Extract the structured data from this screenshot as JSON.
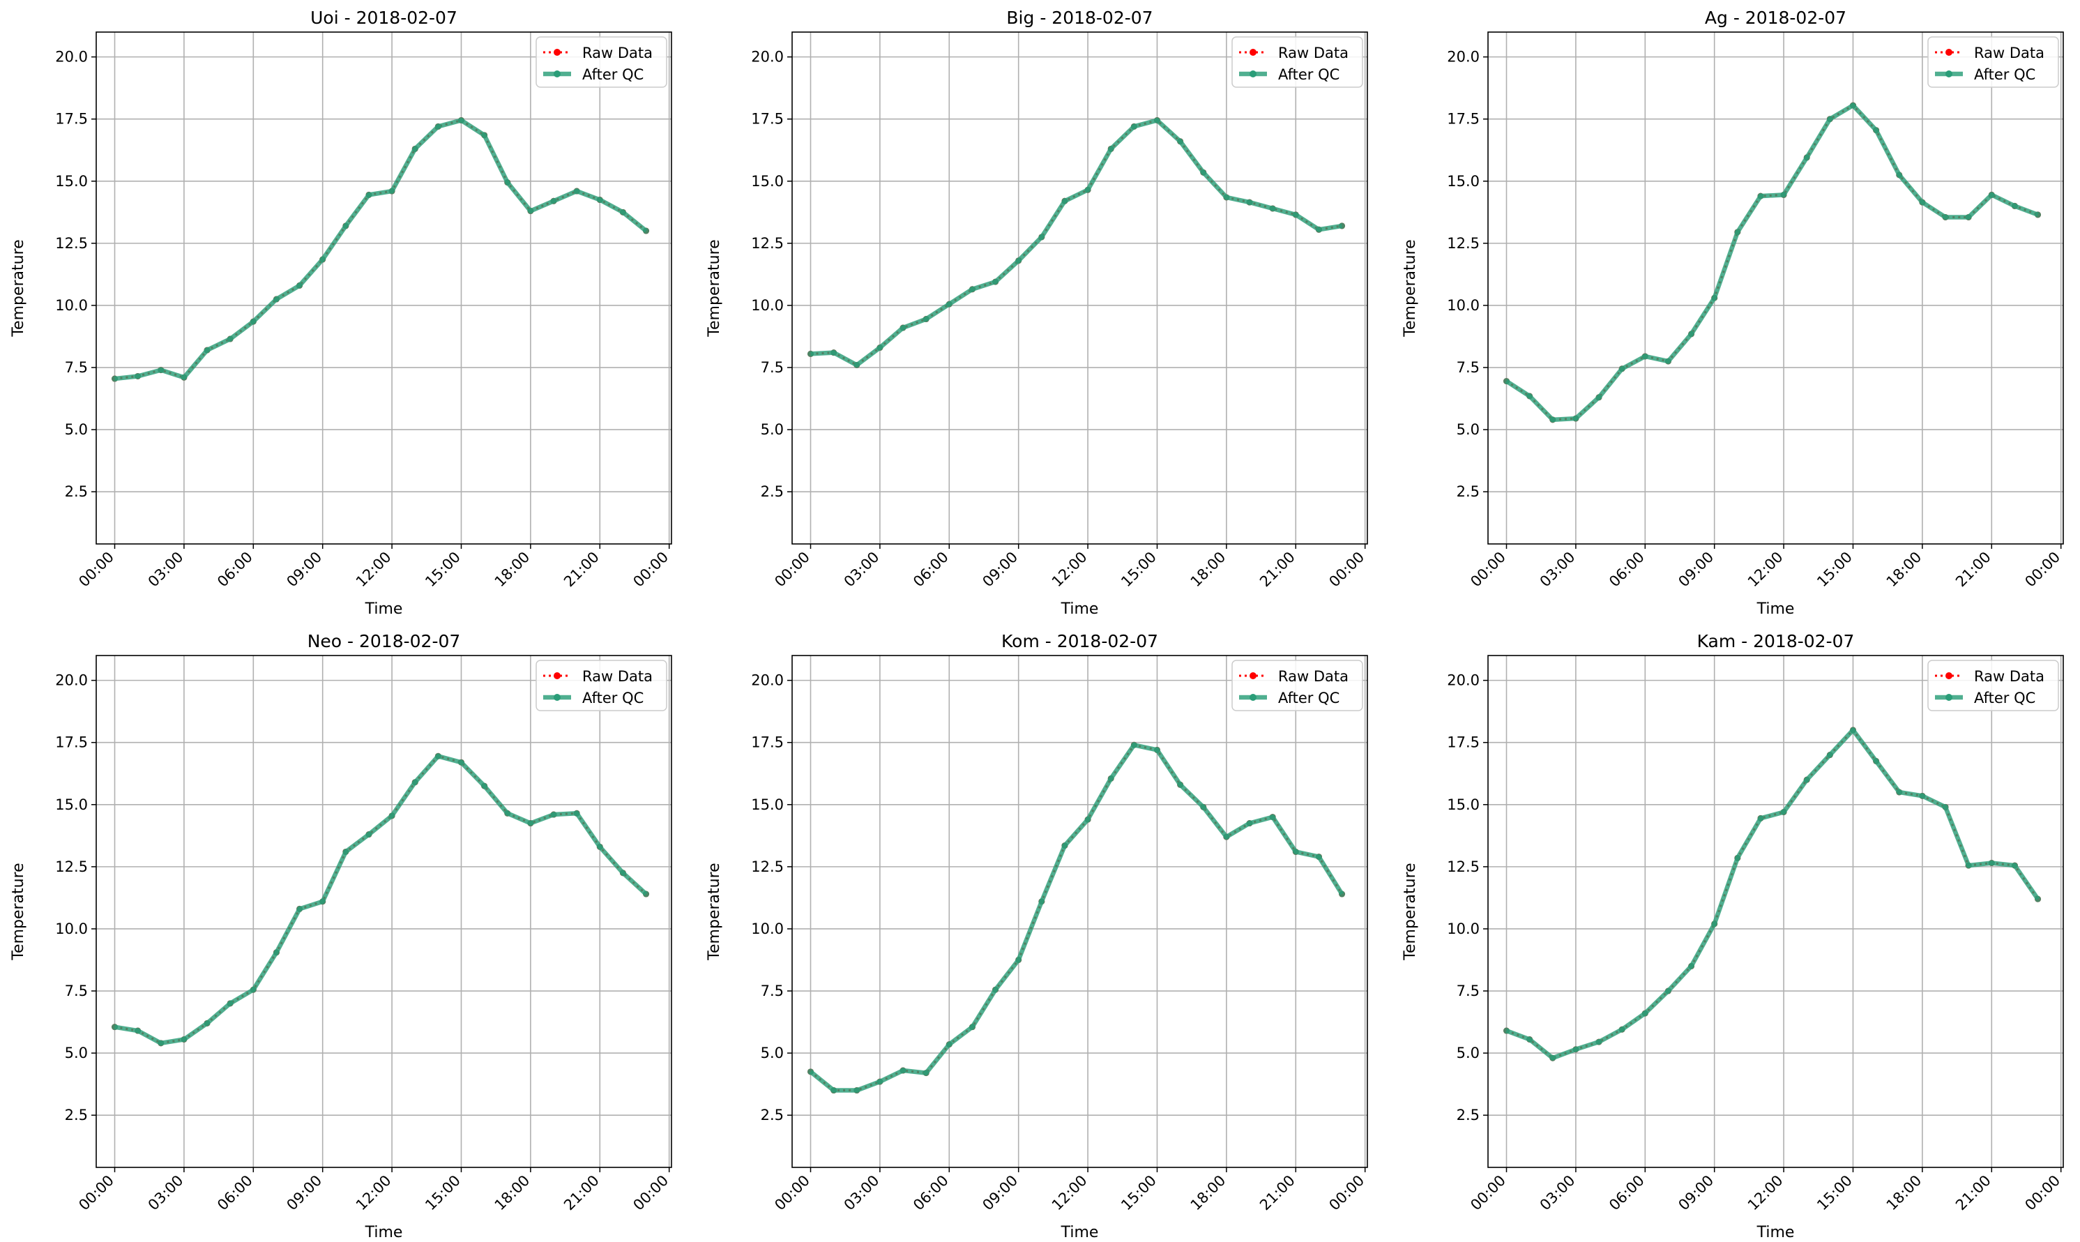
{
  "colors": {
    "raw": "#ff0000",
    "qc": "#2a9d78",
    "grid": "#b0b0b0",
    "axes": "#000000"
  },
  "legend": {
    "raw_label": "Raw Data",
    "qc_label": "After QC",
    "placement": "upper right"
  },
  "chart_data": [
    {
      "type": "line",
      "title": "Uoi - 2018-02-07",
      "xlabel": "Time",
      "ylabel": "Temperature",
      "xticks": [
        "00:00",
        "03:00",
        "06:00",
        "09:00",
        "12:00",
        "15:00",
        "18:00",
        "21:00",
        "00:00"
      ],
      "yticks": [
        "2.5",
        "5.0",
        "7.5",
        "10.0",
        "12.5",
        "15.0",
        "17.5",
        "20.0"
      ],
      "ylim": [
        0.4,
        21.0
      ],
      "xlim_hours": [
        -0.8,
        24.1
      ],
      "grid": true,
      "x_hours": [
        0,
        1,
        2,
        3,
        4,
        5,
        6,
        7,
        8,
        9,
        10,
        11,
        12,
        13,
        14,
        15,
        16,
        17,
        18,
        19,
        20,
        21,
        22,
        23
      ],
      "series": [
        {
          "name": "Raw Data",
          "values": [
            7.05,
            7.15,
            7.4,
            7.1,
            8.2,
            8.65,
            9.35,
            10.25,
            10.8,
            11.85,
            13.2,
            14.45,
            14.6,
            16.3,
            17.2,
            17.45,
            16.85,
            14.95,
            13.8,
            14.2,
            14.6,
            14.25,
            13.75,
            13.0
          ]
        },
        {
          "name": "After QC",
          "values": [
            7.05,
            7.15,
            7.4,
            7.1,
            8.2,
            8.65,
            9.35,
            10.25,
            10.8,
            11.85,
            13.2,
            14.45,
            14.6,
            16.3,
            17.2,
            17.45,
            16.85,
            14.95,
            13.8,
            14.2,
            14.6,
            14.25,
            13.75,
            13.0
          ]
        }
      ]
    },
    {
      "type": "line",
      "title": "Big - 2018-02-07",
      "xlabel": "Time",
      "ylabel": "Temperature",
      "xticks": [
        "00:00",
        "03:00",
        "06:00",
        "09:00",
        "12:00",
        "15:00",
        "18:00",
        "21:00",
        "00:00"
      ],
      "yticks": [
        "2.5",
        "5.0",
        "7.5",
        "10.0",
        "12.5",
        "15.0",
        "17.5",
        "20.0"
      ],
      "ylim": [
        0.4,
        21.0
      ],
      "xlim_hours": [
        -0.8,
        24.1
      ],
      "grid": true,
      "x_hours": [
        0,
        1,
        2,
        3,
        4,
        5,
        6,
        7,
        8,
        9,
        10,
        11,
        12,
        13,
        14,
        15,
        16,
        17,
        18,
        19,
        20,
        21,
        22,
        23
      ],
      "series": [
        {
          "name": "Raw Data",
          "values": [
            8.05,
            8.1,
            7.6,
            8.3,
            9.1,
            9.45,
            10.05,
            10.65,
            10.95,
            11.8,
            12.75,
            14.2,
            14.65,
            16.3,
            17.2,
            17.45,
            16.6,
            15.35,
            14.35,
            14.15,
            13.9,
            13.65,
            13.05,
            13.2
          ]
        },
        {
          "name": "After QC",
          "values": [
            8.05,
            8.1,
            7.6,
            8.3,
            9.1,
            9.45,
            10.05,
            10.65,
            10.95,
            11.8,
            12.75,
            14.2,
            14.65,
            16.3,
            17.2,
            17.45,
            16.6,
            15.35,
            14.35,
            14.15,
            13.9,
            13.65,
            13.05,
            13.2
          ]
        }
      ]
    },
    {
      "type": "line",
      "title": "Ag - 2018-02-07",
      "xlabel": "Time",
      "ylabel": "Temperature",
      "xticks": [
        "00:00",
        "03:00",
        "06:00",
        "09:00",
        "12:00",
        "15:00",
        "18:00",
        "21:00",
        "00:00"
      ],
      "yticks": [
        "2.5",
        "5.0",
        "7.5",
        "10.0",
        "12.5",
        "15.0",
        "17.5",
        "20.0"
      ],
      "ylim": [
        0.4,
        21.0
      ],
      "xlim_hours": [
        -0.8,
        24.1
      ],
      "grid": true,
      "x_hours": [
        0,
        1,
        2,
        3,
        4,
        5,
        6,
        7,
        8,
        9,
        10,
        11,
        12,
        13,
        14,
        15,
        16,
        17,
        18,
        19,
        20,
        21,
        22,
        23
      ],
      "series": [
        {
          "name": "Raw Data",
          "values": [
            6.95,
            6.35,
            5.4,
            5.45,
            6.3,
            7.45,
            7.95,
            7.75,
            8.85,
            10.3,
            12.95,
            14.4,
            14.45,
            15.95,
            17.5,
            18.05,
            17.05,
            15.25,
            14.15,
            13.55,
            13.55,
            14.45,
            14.0,
            13.65
          ]
        },
        {
          "name": "After QC",
          "values": [
            6.95,
            6.35,
            5.4,
            5.45,
            6.3,
            7.45,
            7.95,
            7.75,
            8.85,
            10.3,
            12.95,
            14.4,
            14.45,
            15.95,
            17.5,
            18.05,
            17.05,
            15.25,
            14.15,
            13.55,
            13.55,
            14.45,
            14.0,
            13.65
          ]
        }
      ]
    },
    {
      "type": "line",
      "title": "Neo - 2018-02-07",
      "xlabel": "Time",
      "ylabel": "Temperature",
      "xticks": [
        "00:00",
        "03:00",
        "06:00",
        "09:00",
        "12:00",
        "15:00",
        "18:00",
        "21:00",
        "00:00"
      ],
      "yticks": [
        "2.5",
        "5.0",
        "7.5",
        "10.0",
        "12.5",
        "15.0",
        "17.5",
        "20.0"
      ],
      "ylim": [
        0.4,
        21.0
      ],
      "xlim_hours": [
        -0.8,
        24.1
      ],
      "grid": true,
      "x_hours": [
        0,
        1,
        2,
        3,
        4,
        5,
        6,
        7,
        8,
        9,
        10,
        11,
        12,
        13,
        14,
        15,
        16,
        17,
        18,
        19,
        20,
        21,
        22,
        23
      ],
      "series": [
        {
          "name": "Raw Data",
          "values": [
            6.05,
            5.9,
            5.4,
            5.55,
            6.2,
            7.0,
            7.55,
            9.05,
            10.8,
            11.1,
            13.1,
            13.8,
            14.55,
            15.9,
            16.95,
            16.7,
            15.75,
            14.65,
            14.25,
            14.6,
            14.65,
            13.3,
            12.25,
            11.4
          ]
        },
        {
          "name": "After QC",
          "values": [
            6.05,
            5.9,
            5.4,
            5.55,
            6.2,
            7.0,
            7.55,
            9.05,
            10.8,
            11.1,
            13.1,
            13.8,
            14.55,
            15.9,
            16.95,
            16.7,
            15.75,
            14.65,
            14.25,
            14.6,
            14.65,
            13.3,
            12.25,
            11.4
          ]
        }
      ]
    },
    {
      "type": "line",
      "title": "Kom - 2018-02-07",
      "xlabel": "Time",
      "ylabel": "Temperature",
      "xticks": [
        "00:00",
        "03:00",
        "06:00",
        "09:00",
        "12:00",
        "15:00",
        "18:00",
        "21:00",
        "00:00"
      ],
      "yticks": [
        "2.5",
        "5.0",
        "7.5",
        "10.0",
        "12.5",
        "15.0",
        "17.5",
        "20.0"
      ],
      "ylim": [
        0.4,
        21.0
      ],
      "xlim_hours": [
        -0.8,
        24.1
      ],
      "grid": true,
      "x_hours": [
        0,
        1,
        2,
        3,
        4,
        5,
        6,
        7,
        8,
        9,
        10,
        11,
        12,
        13,
        14,
        15,
        16,
        17,
        18,
        19,
        20,
        21,
        22,
        23
      ],
      "series": [
        {
          "name": "Raw Data",
          "values": [
            4.25,
            3.5,
            3.5,
            3.85,
            4.3,
            4.2,
            5.35,
            6.05,
            7.55,
            8.75,
            11.1,
            13.35,
            14.4,
            16.05,
            17.4,
            17.2,
            15.8,
            14.9,
            13.7,
            14.25,
            14.5,
            13.1,
            12.9,
            11.4
          ]
        },
        {
          "name": "After QC",
          "values": [
            4.25,
            3.5,
            3.5,
            3.85,
            4.3,
            4.2,
            5.35,
            6.05,
            7.55,
            8.75,
            11.1,
            13.35,
            14.4,
            16.05,
            17.4,
            17.2,
            15.8,
            14.9,
            13.7,
            14.25,
            14.5,
            13.1,
            12.9,
            11.4
          ]
        }
      ]
    },
    {
      "type": "line",
      "title": "Kam - 2018-02-07",
      "xlabel": "Time",
      "ylabel": "Temperature",
      "xticks": [
        "00:00",
        "03:00",
        "06:00",
        "09:00",
        "12:00",
        "15:00",
        "18:00",
        "21:00",
        "00:00"
      ],
      "yticks": [
        "2.5",
        "5.0",
        "7.5",
        "10.0",
        "12.5",
        "15.0",
        "17.5",
        "20.0"
      ],
      "ylim": [
        0.4,
        21.0
      ],
      "xlim_hours": [
        -0.8,
        24.1
      ],
      "grid": true,
      "x_hours": [
        0,
        1,
        2,
        3,
        4,
        5,
        6,
        7,
        8,
        9,
        10,
        11,
        12,
        13,
        14,
        15,
        16,
        17,
        18,
        19,
        20,
        21,
        22,
        23
      ],
      "series": [
        {
          "name": "Raw Data",
          "values": [
            5.9,
            5.55,
            4.8,
            5.15,
            5.45,
            5.95,
            6.6,
            7.5,
            8.5,
            10.2,
            12.85,
            14.45,
            14.7,
            16.0,
            17.0,
            18.0,
            16.75,
            15.5,
            15.35,
            14.9,
            12.55,
            12.65,
            12.55,
            11.2
          ]
        },
        {
          "name": "After QC",
          "values": [
            5.9,
            5.55,
            4.8,
            5.15,
            5.45,
            5.95,
            6.6,
            7.5,
            8.5,
            10.2,
            12.85,
            14.45,
            14.7,
            16.0,
            17.0,
            18.0,
            16.75,
            15.5,
            15.35,
            14.9,
            12.55,
            12.65,
            12.55,
            11.2
          ]
        }
      ]
    }
  ]
}
